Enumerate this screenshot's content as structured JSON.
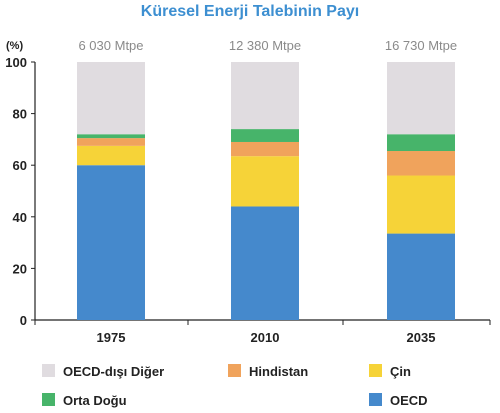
{
  "chart_data": {
    "type": "bar",
    "stacked": true,
    "title": "Küresel Enerji Talebinin Payı",
    "ylabel": "(%)",
    "ylim": [
      0,
      100
    ],
    "yticks": [
      0,
      20,
      40,
      60,
      80,
      100
    ],
    "categories": [
      "1975",
      "2010",
      "2035"
    ],
    "totals": [
      "6 030 Mtpe",
      "12 380 Mtpe",
      "16 730 Mtpe"
    ],
    "series": [
      {
        "name": "OECD",
        "color": "#4589cc",
        "values": [
          60,
          44,
          33.5
        ]
      },
      {
        "name": "Çin",
        "color": "#f6d338",
        "values": [
          7.5,
          19.5,
          22.5
        ]
      },
      {
        "name": "Hindistan",
        "color": "#f0a35c",
        "values": [
          3,
          5.5,
          9.5
        ]
      },
      {
        "name": "Orta Doğu",
        "color": "#47b46a",
        "values": [
          1.5,
          5,
          6.5
        ]
      },
      {
        "name": "OECD-dışı Diğer",
        "color": "#e0dce0",
        "values": [
          28,
          26,
          28
        ]
      }
    ],
    "legend": [
      {
        "name": "OECD-dışı Diğer",
        "color": "#e0dce0"
      },
      {
        "name": "Hindistan",
        "color": "#f0a35c"
      },
      {
        "name": "Çin",
        "color": "#f6d338"
      },
      {
        "name": "Orta Doğu",
        "color": "#47b46a"
      },
      {
        "name": "OECD",
        "color": "#4589cc"
      }
    ],
    "grid": false
  }
}
